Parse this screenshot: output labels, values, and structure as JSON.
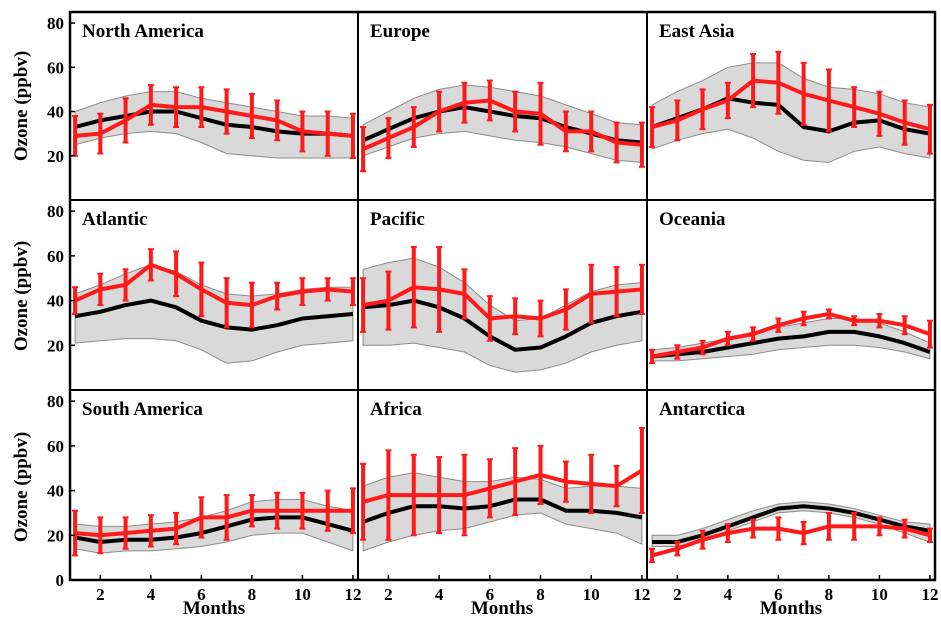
{
  "figure": {
    "ylabel": "Ozone (ppbv)",
    "xlabel": "Months"
  },
  "colors": {
    "model": "#000000",
    "observed": "#ff1a1a",
    "band_fill": "#d9d9d9",
    "band_edge": "#8c8c8c"
  },
  "chart_data": [
    {
      "type": "line",
      "title": "North America",
      "x": [
        1,
        2,
        3,
        4,
        5,
        6,
        7,
        8,
        9,
        10,
        11,
        12
      ],
      "xlim": [
        0.8,
        12.2
      ],
      "ylim": [
        0,
        85
      ],
      "yticks": [
        20,
        40,
        60,
        80
      ],
      "xticks": [
        2,
        4,
        6,
        8,
        10,
        12
      ],
      "series": [
        {
          "role": "model",
          "values": [
            33,
            36,
            38,
            40,
            40,
            37,
            34,
            33,
            31,
            30,
            30,
            29
          ],
          "band_low": [
            25,
            28,
            30,
            31,
            30,
            26,
            21,
            20,
            19,
            19,
            19,
            19
          ],
          "band_high": [
            40,
            44,
            47,
            49,
            49,
            46,
            44,
            42,
            40,
            38,
            38,
            37
          ]
        },
        {
          "role": "observed",
          "values": [
            29,
            30,
            36,
            43,
            42,
            42,
            40,
            38,
            36,
            31,
            30,
            29
          ],
          "err": [
            9,
            9,
            10,
            9,
            9,
            9,
            10,
            10,
            9,
            9,
            10,
            10
          ]
        }
      ]
    },
    {
      "type": "line",
      "title": "Europe",
      "x": [
        1,
        2,
        3,
        4,
        5,
        6,
        7,
        8,
        9,
        10,
        11,
        12
      ],
      "xlim": [
        0.8,
        12.2
      ],
      "ylim": [
        0,
        85
      ],
      "yticks": [
        20,
        40,
        60,
        80
      ],
      "xticks": [
        2,
        4,
        6,
        8,
        10,
        12
      ],
      "series": [
        {
          "role": "model",
          "values": [
            27,
            32,
            37,
            40,
            42,
            40,
            38,
            37,
            33,
            30,
            27,
            26
          ],
          "band_low": [
            20,
            24,
            28,
            30,
            31,
            29,
            27,
            26,
            24,
            21,
            18,
            17
          ],
          "band_high": [
            34,
            40,
            46,
            50,
            52,
            51,
            49,
            47,
            43,
            39,
            35,
            34
          ]
        },
        {
          "role": "observed",
          "values": [
            23,
            28,
            33,
            40,
            44,
            45,
            40,
            39,
            31,
            31,
            26,
            25
          ],
          "err": [
            10,
            9,
            9,
            9,
            9,
            9,
            9,
            14,
            9,
            9,
            9,
            10
          ]
        }
      ]
    },
    {
      "type": "line",
      "title": "East Asia",
      "x": [
        1,
        2,
        3,
        4,
        5,
        6,
        7,
        8,
        9,
        10,
        11,
        12
      ],
      "xlim": [
        0.8,
        12.2
      ],
      "ylim": [
        0,
        85
      ],
      "yticks": [
        20,
        40,
        60,
        80
      ],
      "xticks": [
        2,
        4,
        6,
        8,
        10,
        12
      ],
      "series": [
        {
          "role": "model",
          "values": [
            33,
            37,
            41,
            46,
            44,
            43,
            33,
            31,
            35,
            36,
            32,
            30
          ],
          "band_low": [
            23,
            27,
            30,
            32,
            28,
            22,
            18,
            17,
            22,
            24,
            21,
            19
          ],
          "band_high": [
            43,
            49,
            54,
            60,
            62,
            62,
            55,
            51,
            50,
            48,
            44,
            42
          ]
        },
        {
          "role": "observed",
          "values": [
            33,
            36,
            41,
            45,
            54,
            53,
            48,
            45,
            42,
            39,
            35,
            32
          ],
          "err": [
            9,
            9,
            9,
            8,
            12,
            14,
            14,
            14,
            9,
            10,
            10,
            11
          ]
        }
      ]
    },
    {
      "type": "line",
      "title": "Atlantic",
      "x": [
        1,
        2,
        3,
        4,
        5,
        6,
        7,
        8,
        9,
        10,
        11,
        12
      ],
      "xlim": [
        0.8,
        12.2
      ],
      "ylim": [
        0,
        85
      ],
      "yticks": [
        20,
        40,
        60,
        80
      ],
      "xticks": [
        2,
        4,
        6,
        8,
        10,
        12
      ],
      "series": [
        {
          "role": "model",
          "values": [
            33,
            35,
            38,
            40,
            37,
            31,
            28,
            27,
            29,
            32,
            33,
            34
          ],
          "band_low": [
            21,
            22,
            23,
            23,
            22,
            18,
            12,
            13,
            17,
            20,
            21,
            22
          ],
          "band_high": [
            43,
            47,
            52,
            56,
            53,
            47,
            43,
            42,
            43,
            45,
            46,
            46
          ]
        },
        {
          "role": "observed",
          "values": [
            40,
            45,
            47,
            56,
            52,
            45,
            39,
            38,
            42,
            44,
            45,
            44
          ],
          "err": [
            6,
            7,
            7,
            7,
            10,
            12,
            11,
            10,
            6,
            6,
            5,
            6
          ]
        }
      ]
    },
    {
      "type": "line",
      "title": "Pacific",
      "x": [
        1,
        2,
        3,
        4,
        5,
        6,
        7,
        8,
        9,
        10,
        11,
        12
      ],
      "xlim": [
        0.8,
        12.2
      ],
      "ylim": [
        0,
        85
      ],
      "yticks": [
        20,
        40,
        60,
        80
      ],
      "xticks": [
        2,
        4,
        6,
        8,
        10,
        12
      ],
      "series": [
        {
          "role": "model",
          "values": [
            37,
            38,
            40,
            37,
            32,
            24,
            18,
            19,
            24,
            30,
            33,
            35
          ],
          "band_low": [
            20,
            20,
            21,
            19,
            17,
            11,
            8,
            9,
            12,
            17,
            20,
            22
          ],
          "band_high": [
            54,
            57,
            59,
            55,
            48,
            38,
            31,
            32,
            38,
            44,
            47,
            48
          ]
        },
        {
          "role": "observed",
          "values": [
            38,
            40,
            46,
            45,
            43,
            32,
            33,
            32,
            36,
            43,
            44,
            45
          ],
          "err": [
            12,
            13,
            18,
            19,
            11,
            10,
            8,
            8,
            9,
            13,
            11,
            11
          ]
        }
      ]
    },
    {
      "type": "line",
      "title": "Oceania",
      "x": [
        1,
        2,
        3,
        4,
        5,
        6,
        7,
        8,
        9,
        10,
        11,
        12
      ],
      "xlim": [
        0.8,
        12.2
      ],
      "ylim": [
        0,
        85
      ],
      "yticks": [
        20,
        40,
        60,
        80
      ],
      "xticks": [
        2,
        4,
        6,
        8,
        10,
        12
      ],
      "series": [
        {
          "role": "model",
          "values": [
            15,
            16,
            17,
            19,
            21,
            23,
            24,
            26,
            26,
            24,
            21,
            17
          ],
          "band_low": [
            13,
            13,
            14,
            15,
            16,
            18,
            19,
            20,
            20,
            19,
            17,
            14
          ],
          "band_high": [
            18,
            19,
            21,
            23,
            26,
            28,
            30,
            32,
            32,
            30,
            26,
            21
          ]
        },
        {
          "role": "observed",
          "values": [
            15,
            17,
            19,
            23,
            25,
            29,
            32,
            34,
            31,
            31,
            29,
            25
          ],
          "err": [
            3,
            3,
            3,
            3,
            3,
            3,
            3,
            2,
            2,
            3,
            4,
            6
          ]
        }
      ]
    },
    {
      "type": "line",
      "title": "South America",
      "x": [
        1,
        2,
        3,
        4,
        5,
        6,
        7,
        8,
        9,
        10,
        11,
        12
      ],
      "xlim": [
        0.8,
        12.2
      ],
      "ylim": [
        0,
        85
      ],
      "yticks": [
        0,
        20,
        40,
        60,
        80
      ],
      "xticks": [
        2,
        4,
        6,
        8,
        10,
        12
      ],
      "series": [
        {
          "role": "model",
          "values": [
            19,
            17,
            18,
            18,
            19,
            21,
            24,
            27,
            28,
            28,
            25,
            22
          ],
          "band_low": [
            14,
            12,
            13,
            13,
            14,
            15,
            17,
            20,
            21,
            21,
            17,
            13
          ],
          "band_high": [
            25,
            24,
            24,
            25,
            26,
            28,
            31,
            35,
            36,
            36,
            33,
            31
          ]
        },
        {
          "role": "observed",
          "values": [
            21,
            20,
            21,
            22,
            23,
            28,
            28,
            31,
            31,
            31,
            31,
            31
          ],
          "err": [
            10,
            8,
            7,
            7,
            7,
            9,
            10,
            7,
            8,
            8,
            9,
            10
          ]
        }
      ]
    },
    {
      "type": "line",
      "title": "Africa",
      "x": [
        1,
        2,
        3,
        4,
        5,
        6,
        7,
        8,
        9,
        10,
        11,
        12
      ],
      "xlim": [
        0.8,
        12.2
      ],
      "ylim": [
        0,
        85
      ],
      "yticks": [
        0,
        20,
        40,
        60,
        80
      ],
      "xticks": [
        2,
        4,
        6,
        8,
        10,
        12
      ],
      "series": [
        {
          "role": "model",
          "values": [
            26,
            30,
            33,
            33,
            32,
            33,
            36,
            36,
            31,
            31,
            30,
            28
          ],
          "band_low": [
            13,
            17,
            20,
            22,
            23,
            26,
            29,
            30,
            25,
            23,
            21,
            16
          ],
          "band_high": [
            42,
            46,
            48,
            46,
            44,
            44,
            46,
            45,
            41,
            42,
            42,
            41
          ]
        },
        {
          "role": "observed",
          "values": [
            35,
            38,
            38,
            38,
            38,
            41,
            44,
            47,
            44,
            43,
            42,
            49
          ],
          "err": [
            17,
            20,
            18,
            17,
            18,
            13,
            15,
            13,
            9,
            13,
            9,
            19
          ]
        }
      ]
    },
    {
      "type": "line",
      "title": "Antarctica",
      "x": [
        1,
        2,
        3,
        4,
        5,
        6,
        7,
        8,
        9,
        10,
        11,
        12
      ],
      "xlim": [
        0.8,
        12.2
      ],
      "ylim": [
        0,
        85
      ],
      "yticks": [
        0,
        20,
        40,
        60,
        80
      ],
      "xticks": [
        2,
        4,
        6,
        8,
        10,
        12
      ],
      "series": [
        {
          "role": "model",
          "values": [
            17,
            17,
            20,
            24,
            28,
            32,
            33,
            32,
            30,
            27,
            24,
            22
          ],
          "band_low": [
            15,
            15,
            18,
            22,
            26,
            30,
            31,
            30,
            28,
            25,
            21,
            17
          ],
          "band_high": [
            20,
            20,
            23,
            27,
            31,
            34,
            35,
            34,
            32,
            29,
            26,
            25
          ]
        },
        {
          "role": "observed",
          "values": [
            11,
            14,
            18,
            21,
            23,
            23,
            21,
            24,
            24,
            24,
            23,
            20
          ],
          "err": [
            3,
            3,
            4,
            4,
            4,
            5,
            5,
            6,
            6,
            4,
            4,
            3
          ]
        }
      ]
    }
  ]
}
